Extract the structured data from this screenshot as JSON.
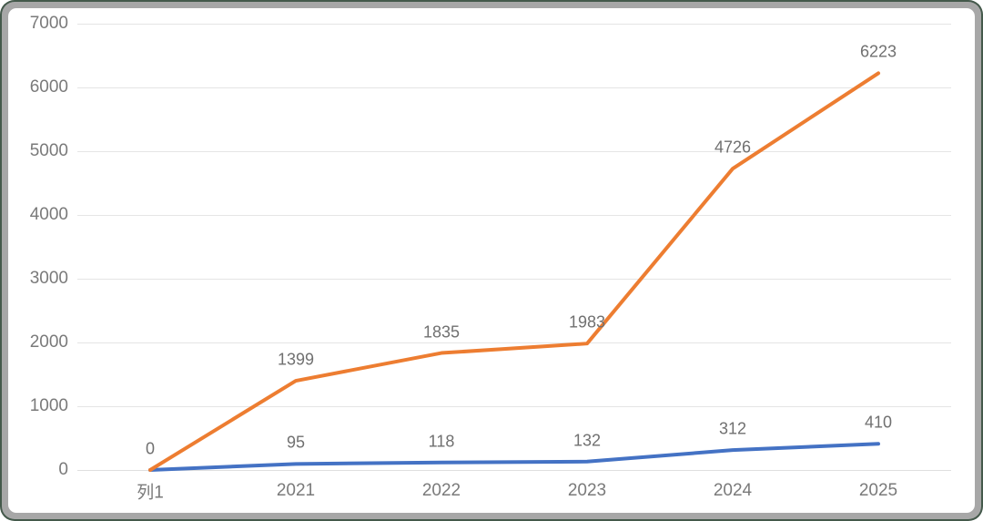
{
  "chart_data": {
    "type": "line",
    "title": "",
    "xlabel": "",
    "ylabel": "",
    "categories": [
      "列1",
      "2021",
      "2022",
      "2023",
      "2024",
      "2025"
    ],
    "series": [
      {
        "name": "series-blue",
        "color": "#4472C4",
        "values": [
          0,
          95,
          118,
          132,
          312,
          410
        ],
        "point_labels": [
          "",
          "95",
          "118",
          "132",
          "312",
          "410"
        ]
      },
      {
        "name": "series-orange",
        "color": "#ED7D31",
        "values": [
          0,
          1399,
          1835,
          1983,
          4726,
          6223
        ],
        "point_labels": [
          "0",
          "1399",
          "1835",
          "1983",
          "4726",
          "6223"
        ]
      }
    ],
    "y_axis": {
      "min": 0,
      "max": 7000,
      "step": 1000,
      "tick_labels": [
        "0",
        "1000",
        "2000",
        "3000",
        "4000",
        "5000",
        "6000",
        "7000"
      ]
    },
    "grid": "horizontal-on",
    "legend": "none"
  },
  "colors": {
    "gridline": "#E5E5E5",
    "axis_baseline": "#DFDFDF",
    "tick_text": "#7A7A7A",
    "data_label_text": "#707070",
    "frame_outer_green": "#44594B",
    "frame_gray": "#A7A7A7",
    "plot_background": "#FFFFFF"
  }
}
